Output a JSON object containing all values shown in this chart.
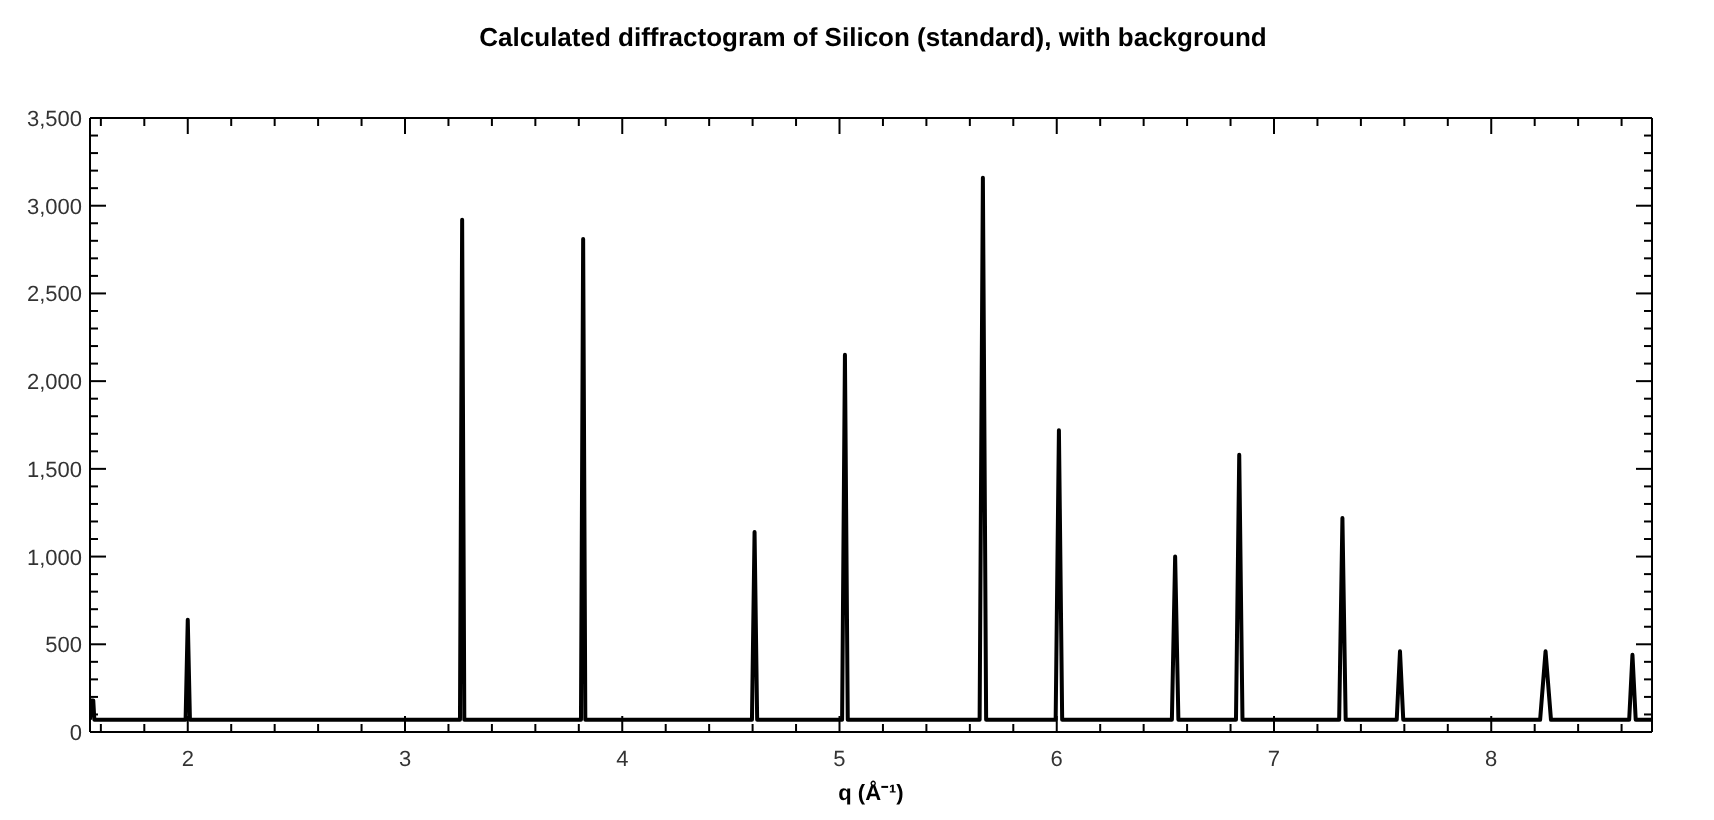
{
  "chart_data": {
    "type": "line",
    "title": "Calculated diffractogram of Silicon (standard), with background",
    "xlabel": "q (Å⁻¹)",
    "xlim": [
      1.55,
      8.74
    ],
    "ylim": [
      0,
      3500
    ],
    "xticks": [
      {
        "value": 1.6,
        "label": null
      },
      {
        "value": 1.8,
        "label": null
      },
      2,
      {
        "value": 2.2,
        "label": null
      },
      {
        "value": 2.4,
        "label": null
      },
      {
        "value": 2.6,
        "label": null
      },
      {
        "value": 2.8,
        "label": null
      },
      3,
      {
        "value": 3.2,
        "label": null
      },
      {
        "value": 3.4,
        "label": null
      },
      {
        "value": 3.6,
        "label": null
      },
      {
        "value": 3.8,
        "label": null
      },
      4,
      {
        "value": 4.2,
        "label": null
      },
      {
        "value": 4.4,
        "label": null
      },
      {
        "value": 4.6,
        "label": null
      },
      {
        "value": 4.8,
        "label": null
      },
      5,
      {
        "value": 5.2,
        "label": null
      },
      {
        "value": 5.4,
        "label": null
      },
      {
        "value": 5.6,
        "label": null
      },
      {
        "value": 5.8,
        "label": null
      },
      6,
      {
        "value": 6.2,
        "label": null
      },
      {
        "value": 6.4,
        "label": null
      },
      {
        "value": 6.6,
        "label": null
      },
      {
        "value": 6.8,
        "label": null
      },
      7,
      {
        "value": 7.2,
        "label": null
      },
      {
        "value": 7.4,
        "label": null
      },
      {
        "value": 7.6,
        "label": null
      },
      {
        "value": 7.8,
        "label": null
      },
      8,
      {
        "value": 8.2,
        "label": null
      },
      {
        "value": 8.4,
        "label": null
      },
      {
        "value": 8.6,
        "label": null
      }
    ],
    "yticks": [
      0,
      {
        "value": 100,
        "label": null
      },
      {
        "value": 200,
        "label": null
      },
      {
        "value": 300,
        "label": null
      },
      {
        "value": 400,
        "label": null
      },
      500,
      {
        "value": 600,
        "label": null
      },
      {
        "value": 700,
        "label": null
      },
      {
        "value": 800,
        "label": null
      },
      {
        "value": 900,
        "label": null
      },
      {
        "value": 1000,
        "label": "1,000"
      },
      {
        "value": 1100,
        "label": null
      },
      {
        "value": 1200,
        "label": null
      },
      {
        "value": 1300,
        "label": null
      },
      {
        "value": 1400,
        "label": null
      },
      {
        "value": 1500,
        "label": "1,500"
      },
      {
        "value": 1600,
        "label": null
      },
      {
        "value": 1700,
        "label": null
      },
      {
        "value": 1800,
        "label": null
      },
      {
        "value": 1900,
        "label": null
      },
      {
        "value": 2000,
        "label": "2,000"
      },
      {
        "value": 2100,
        "label": null
      },
      {
        "value": 2200,
        "label": null
      },
      {
        "value": 2300,
        "label": null
      },
      {
        "value": 2400,
        "label": null
      },
      {
        "value": 2500,
        "label": "2,500"
      },
      {
        "value": 2600,
        "label": null
      },
      {
        "value": 2700,
        "label": null
      },
      {
        "value": 2800,
        "label": null
      },
      {
        "value": 2900,
        "label": null
      },
      {
        "value": 3000,
        "label": "3,000"
      },
      {
        "value": 3100,
        "label": null
      },
      {
        "value": 3200,
        "label": null
      },
      {
        "value": 3300,
        "label": null
      },
      {
        "value": 3400,
        "label": null
      },
      {
        "value": 3500,
        "label": "3,500"
      }
    ],
    "marker": "none",
    "line_style": "solid",
    "series": [
      {
        "color": "#000000",
        "x": [
          1.55,
          1.555,
          1.565,
          1.57,
          1.99,
          2.0,
          2.01,
          3.253,
          3.263,
          3.273,
          3.81,
          3.82,
          3.83,
          4.597,
          4.609,
          4.621,
          5.012,
          5.025,
          5.038,
          5.645,
          5.66,
          5.675,
          5.995,
          6.01,
          6.025,
          6.53,
          6.545,
          6.56,
          6.825,
          6.84,
          6.855,
          7.3,
          7.315,
          7.33,
          7.565,
          7.58,
          7.595,
          8.225,
          8.25,
          8.275,
          8.635,
          8.65,
          8.665,
          8.74
        ],
        "values": [
          70,
          180,
          180,
          70,
          70,
          640,
          70,
          70,
          2920,
          70,
          70,
          2810,
          70,
          70,
          1140,
          70,
          70,
          2150,
          70,
          70,
          3160,
          70,
          70,
          1720,
          70,
          70,
          1000,
          70,
          70,
          1580,
          70,
          70,
          1220,
          70,
          70,
          460,
          70,
          70,
          460,
          70,
          70,
          440,
          70,
          70
        ]
      }
    ]
  }
}
